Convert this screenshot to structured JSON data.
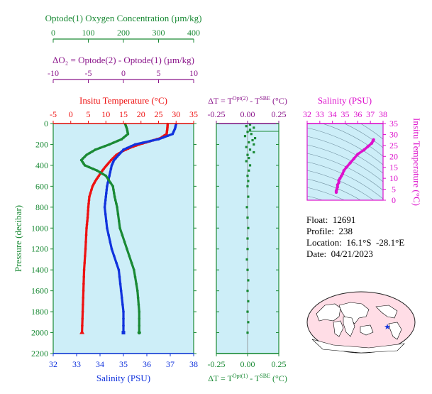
{
  "colors": {
    "oxygen": "#1a8a35",
    "delta_o2": "#8b168b",
    "temperature": "#ee1111",
    "salinity": "#1133dd",
    "salinity_panel": "#dd11cc",
    "plot_bg": "#cdeef8",
    "map_bg": "#ffdde6"
  },
  "info": {
    "float_label": "Float:",
    "float_value": "12691",
    "profile_label": "Profile:",
    "profile_value": "238",
    "location_label": "Location:",
    "location_value": "16.1°S  -28.1°E",
    "date_label": "Date:",
    "date_value": "04/21/2023"
  },
  "chart_data": [
    {
      "type": "line",
      "panel": "main-profile",
      "ylabel": "Pressure (decibar)",
      "ylim": [
        2200,
        0
      ],
      "yticks": [
        0,
        200,
        400,
        600,
        800,
        1000,
        1200,
        1400,
        1600,
        1800,
        2000,
        2200
      ],
      "axes": {
        "oxygen": {
          "label": "Optode(1) Oxygen Concentration (µm/kg)",
          "lim": [
            0,
            400
          ],
          "ticks": [
            0,
            100,
            200,
            300,
            400
          ]
        },
        "delta_o2": {
          "label": "ΔO₂ = Optode(2) - Optode(1)   (µm/kg)",
          "lim": [
            -10,
            10
          ],
          "ticks": [
            -10,
            -5,
            0,
            5,
            10
          ]
        },
        "temperature": {
          "label": "Insitu Temperature (°C)",
          "lim": [
            -5,
            35
          ],
          "ticks": [
            -5,
            0,
            5,
            10,
            15,
            20,
            25,
            30,
            35
          ]
        },
        "salinity": {
          "label": "Salinity (PSU)",
          "lim": [
            32,
            38
          ],
          "ticks": [
            32,
            33,
            34,
            35,
            36,
            37,
            38
          ]
        }
      },
      "series": [
        {
          "name": "Insitu Temperature",
          "axis": "temperature",
          "p": [
            5,
            50,
            100,
            140,
            170,
            200,
            230,
            260,
            300,
            350,
            400,
            450,
            500,
            550,
            600,
            700,
            800,
            900,
            1000,
            1200,
            1400,
            1600,
            1800,
            2000
          ],
          "values": [
            27.6,
            27.5,
            27.3,
            25.5,
            22.5,
            19.5,
            17.0,
            15.0,
            13.0,
            11.5,
            10.2,
            9.0,
            8.0,
            7.0,
            6.2,
            5.3,
            5.0,
            4.8,
            4.5,
            4.2,
            3.8,
            3.6,
            3.4,
            3.2
          ]
        },
        {
          "name": "Salinity",
          "axis": "salinity",
          "p": [
            5,
            50,
            100,
            150,
            200,
            250,
            300,
            350,
            400,
            500,
            600,
            700,
            800,
            1000,
            1200,
            1400,
            1600,
            1800,
            2000
          ],
          "values": [
            37.25,
            37.2,
            37.1,
            36.5,
            35.5,
            35.0,
            34.8,
            34.6,
            34.5,
            34.4,
            34.3,
            34.25,
            34.2,
            34.3,
            34.5,
            34.8,
            34.9,
            35.0,
            35.0
          ]
        },
        {
          "name": "Optode(1) Oxygen",
          "axis": "oxygen",
          "p": [
            5,
            50,
            100,
            150,
            200,
            250,
            300,
            350,
            400,
            450,
            500,
            600,
            700,
            800,
            1000,
            1200,
            1400,
            1600,
            1800,
            2000
          ],
          "values": [
            205,
            210,
            213,
            195,
            160,
            120,
            95,
            80,
            90,
            125,
            150,
            170,
            175,
            182,
            190,
            210,
            230,
            240,
            245,
            245
          ]
        }
      ]
    },
    {
      "type": "scatter",
      "panel": "delta-t",
      "xlabel_top": "ΔT = T^{Opt(2)} - T^{SBE} (°C)",
      "xlabel_bottom": "ΔT = T^{Opt(1)} - T^{SBE} (°C)",
      "xlim": [
        -0.25,
        0.25
      ],
      "xticks": [
        -0.25,
        0.0,
        0.25
      ],
      "ylim": [
        2200,
        0
      ],
      "p": [
        10,
        25,
        40,
        60,
        80,
        100,
        120,
        140,
        160,
        180,
        200,
        225,
        250,
        275,
        300,
        330,
        360,
        400,
        450,
        500,
        550,
        600,
        700,
        800,
        900,
        1000,
        1100,
        1200,
        1300,
        1400,
        1500,
        1600,
        1700,
        1800,
        1900,
        2000
      ],
      "values": [
        0.02,
        -0.01,
        0.05,
        0.02,
        0.0,
        0.03,
        -0.02,
        0.06,
        0.04,
        0.01,
        0.05,
        -0.01,
        0.02,
        0.05,
        0.0,
        0.01,
        -0.01,
        0.02,
        0.01,
        0.0,
        0.005,
        0.0,
        0.005,
        -0.005,
        0.0,
        0.005,
        0.0,
        0.0,
        -0.005,
        0.0,
        0.005,
        0.0,
        0.005,
        0.0,
        0.005,
        0.0
      ]
    },
    {
      "type": "scatter",
      "panel": "ts-diagram",
      "xlabel": "Salinity (PSU)",
      "ylabel": "Insitu Temperature (°C)",
      "xlim": [
        32,
        38
      ],
      "xticks": [
        32,
        33,
        34,
        35,
        36,
        37,
        38
      ],
      "ylim": [
        0,
        35
      ],
      "yticks": [
        0,
        5,
        10,
        15,
        20,
        25,
        30,
        35
      ],
      "s": [
        37.25,
        37.2,
        37.1,
        36.8,
        36.5,
        36.0,
        35.7,
        35.4,
        35.1,
        34.9,
        34.8,
        34.7,
        34.6,
        34.5,
        34.5,
        34.4,
        34.4,
        34.35,
        34.3,
        34.3
      ],
      "t": [
        27.6,
        27.0,
        26.0,
        24.5,
        23.0,
        21.0,
        19.0,
        17.0,
        15.0,
        13.5,
        12.0,
        11.0,
        10.0,
        9.0,
        8.0,
        7.0,
        6.0,
        5.0,
        4.2,
        3.6
      ]
    }
  ],
  "map": {
    "marker": "★",
    "lon": -28.1,
    "lat": -16.1
  }
}
